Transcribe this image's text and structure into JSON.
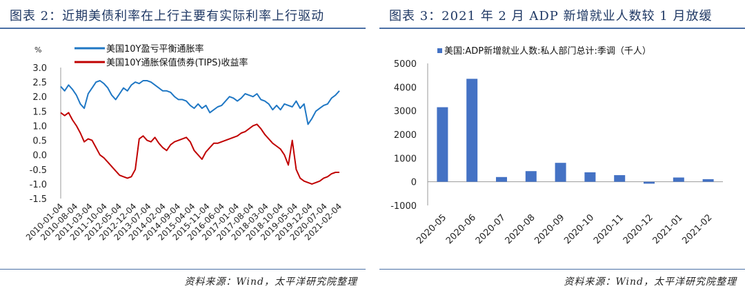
{
  "left": {
    "title": "图表 2：近期美债利率在上行主要有实际利率上行驱动",
    "source": "资料来源：Wind，太平洋研究院整理"
  },
  "right": {
    "title": "图表 3：2021 年 2 月 ADP 新增就业人数较 1 月放缓",
    "source": "资料来源：Wind，太平洋研究院整理"
  },
  "chart_data": [
    {
      "type": "line",
      "ylabel": "%",
      "ylim": [
        -1.5,
        3.0
      ],
      "yticks": [
        "3.0",
        "2.5",
        "2.0",
        "1.5",
        "1.0",
        "0.5",
        "0.0",
        "-0.5",
        "-1.0",
        "-1.5"
      ],
      "x_tick_labels": [
        "2010-01-04",
        "2010-08-04",
        "2011-03-04",
        "2011-10-04",
        "2012-05-04",
        "2012-12-04",
        "2013-07-04",
        "2014-02-04",
        "2014-09-04",
        "2015-04-04",
        "2015-11-04",
        "2016-06-04",
        "2017-01-04",
        "2017-08-04",
        "2018-03-04",
        "2018-10-04",
        "2019-05-04",
        "2019-12-04",
        "2020-07-04",
        "2021-02-04"
      ],
      "legend_position": "top",
      "grid": false,
      "series": [
        {
          "name": "美国10Y盈亏平衡通胀率",
          "color": "#1f77c4",
          "values": [
            2.35,
            2.2,
            2.4,
            2.25,
            2.05,
            1.75,
            1.6,
            2.1,
            2.3,
            2.5,
            2.55,
            2.45,
            2.3,
            2.05,
            1.9,
            2.1,
            2.3,
            2.2,
            2.4,
            2.5,
            2.45,
            2.55,
            2.55,
            2.5,
            2.4,
            2.3,
            2.2,
            2.2,
            2.15,
            2.0,
            1.9,
            1.9,
            1.85,
            1.7,
            1.6,
            1.75,
            1.6,
            1.7,
            1.45,
            1.55,
            1.65,
            1.7,
            1.85,
            2.0,
            1.95,
            1.85,
            1.95,
            2.1,
            2.05,
            2.0,
            2.1,
            1.9,
            1.85,
            1.75,
            1.55,
            1.7,
            1.55,
            1.75,
            1.7,
            1.65,
            1.85,
            1.6,
            1.75,
            1.05,
            1.25,
            1.5,
            1.6,
            1.7,
            1.75,
            1.95,
            2.05,
            2.2
          ]
        },
        {
          "name": "美国10Y通胀保值债券(TIPS)收益率",
          "color": "#c00000",
          "values": [
            1.45,
            1.35,
            1.45,
            1.2,
            1.0,
            0.75,
            0.45,
            0.55,
            0.5,
            0.25,
            0.0,
            -0.1,
            -0.25,
            -0.4,
            -0.55,
            -0.7,
            -0.75,
            -0.8,
            -0.75,
            -0.5,
            0.55,
            0.65,
            0.5,
            0.45,
            0.6,
            0.4,
            0.25,
            0.15,
            0.35,
            0.45,
            0.5,
            0.55,
            0.6,
            0.45,
            0.15,
            0.0,
            -0.15,
            0.1,
            0.25,
            0.4,
            0.4,
            0.45,
            0.5,
            0.55,
            0.6,
            0.65,
            0.75,
            0.8,
            0.9,
            1.0,
            1.05,
            0.9,
            0.7,
            0.55,
            0.4,
            0.3,
            0.2,
            0.0,
            -0.35,
            0.5,
            -0.5,
            -0.8,
            -0.9,
            -0.95,
            -1.0,
            -0.95,
            -0.9,
            -0.8,
            -0.75,
            -0.65,
            -0.6,
            -0.6
          ]
        }
      ]
    },
    {
      "type": "bar",
      "categories": [
        "2020-05",
        "2020-06",
        "2020-07",
        "2020-08",
        "2020-09",
        "2020-10",
        "2020-11",
        "2020-12",
        "2021-01",
        "2021-02"
      ],
      "series": [
        {
          "name": "美国:ADP新增就业人数:私人部门总计:季调（千人）",
          "color": "#4472c4",
          "values": [
            3150,
            4350,
            200,
            450,
            800,
            400,
            280,
            -80,
            180,
            110
          ]
        }
      ],
      "ylim": [
        -1000,
        5000
      ],
      "yticks": [
        "5000",
        "4000",
        "3000",
        "2000",
        "1000",
        "0",
        "-1000"
      ],
      "legend_position": "top-left",
      "grid": false
    }
  ]
}
